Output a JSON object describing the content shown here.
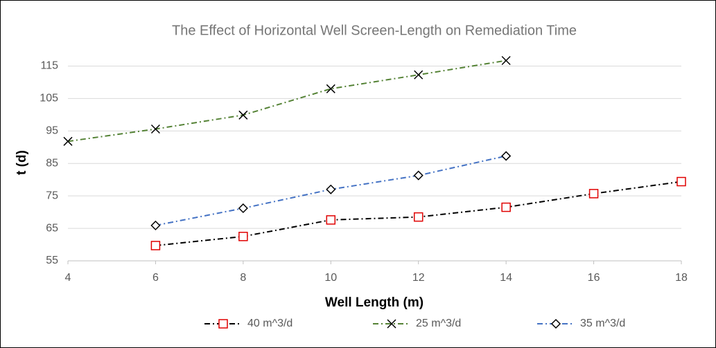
{
  "chart_data": {
    "type": "line",
    "title": "The Effect of Horizontal Well Screen-Length on Remediation Time",
    "x_label": "Well Length (m)",
    "y_label": "t (d)",
    "xlim": [
      4,
      18
    ],
    "xticks": [
      4,
      6,
      8,
      10,
      12,
      14,
      16,
      18
    ],
    "ylim": [
      55,
      120
    ],
    "yticks": [
      55,
      65,
      75,
      85,
      95,
      105,
      115
    ],
    "grid": true,
    "legend": "bottom",
    "series": [
      {
        "name": "40 m^3/d",
        "color": "#000000",
        "marker": "square",
        "marker_color": "#e00000",
        "x": [
          6,
          8,
          10,
          12,
          14,
          16,
          18
        ],
        "values": [
          59.7,
          62.5,
          67.6,
          68.5,
          71.5,
          75.7,
          79.4
        ]
      },
      {
        "name": "25 m^3/d",
        "color": "#548235",
        "marker": "x",
        "marker_color": "#000000",
        "x": [
          4,
          6,
          8,
          10,
          12,
          14
        ],
        "values": [
          91.8,
          95.6,
          99.9,
          108,
          112.3,
          116.7
        ]
      },
      {
        "name": "35 m^3/d",
        "color": "#4472c4",
        "marker": "diamond",
        "marker_color": "#000000",
        "x": [
          6,
          8,
          10,
          12,
          14
        ],
        "values": [
          65.9,
          71.2,
          77,
          81.3,
          87.3
        ]
      }
    ]
  }
}
